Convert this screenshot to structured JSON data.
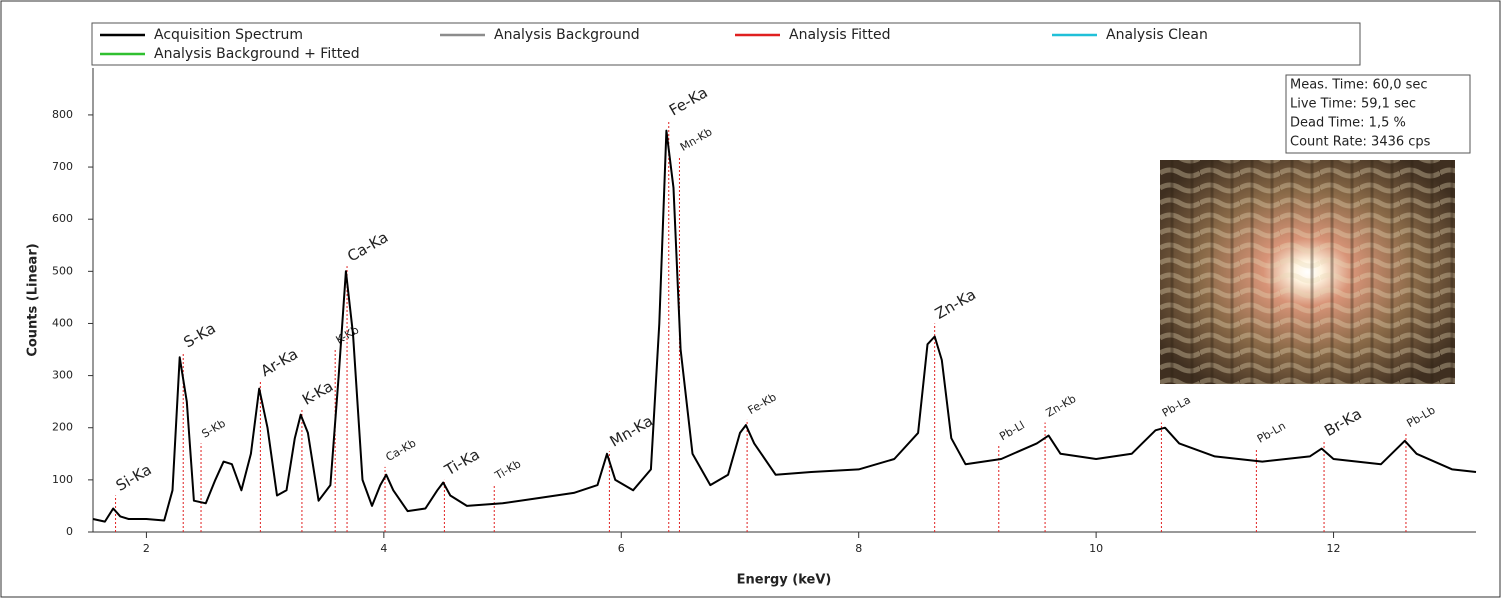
{
  "chart_data": {
    "type": "line",
    "xlabel": "Energy (keV)",
    "ylabel": "Counts (Linear)",
    "xlim": [
      1.55,
      13.2
    ],
    "ylim": [
      0,
      890
    ],
    "xticks": [
      2,
      4,
      6,
      8,
      10,
      12
    ],
    "yticks": [
      0,
      100,
      200,
      300,
      400,
      500,
      600,
      700,
      800
    ],
    "legend": [
      {
        "name": "Acquisition Spectrum",
        "color": "#000000"
      },
      {
        "name": "Analysis Background",
        "color": "#8c8c8c"
      },
      {
        "name": "Analysis Fitted",
        "color": "#e02020"
      },
      {
        "name": "Analysis Clean",
        "color": "#20c0d8"
      },
      {
        "name": "Analysis Background + Fitted",
        "color": "#30c030"
      }
    ],
    "color": "#000000",
    "marker_color": "#e02020",
    "x": [
      1.55,
      1.65,
      1.72,
      1.78,
      1.85,
      2.0,
      2.15,
      2.22,
      2.28,
      2.34,
      2.4,
      2.5,
      2.58,
      2.65,
      2.72,
      2.8,
      2.88,
      2.95,
      3.02,
      3.1,
      3.18,
      3.25,
      3.3,
      3.36,
      3.45,
      3.55,
      3.62,
      3.68,
      3.74,
      3.82,
      3.9,
      3.97,
      4.02,
      4.08,
      4.2,
      4.35,
      4.45,
      4.5,
      4.56,
      4.7,
      5.0,
      5.3,
      5.6,
      5.8,
      5.88,
      5.95,
      6.1,
      6.25,
      6.32,
      6.38,
      6.44,
      6.5,
      6.6,
      6.75,
      6.9,
      7.0,
      7.05,
      7.12,
      7.3,
      7.6,
      8.0,
      8.3,
      8.5,
      8.58,
      8.64,
      8.7,
      8.78,
      8.9,
      9.2,
      9.5,
      9.6,
      9.7,
      10.0,
      10.3,
      10.5,
      10.58,
      10.7,
      11.0,
      11.4,
      11.8,
      11.9,
      12.0,
      12.4,
      12.6,
      12.7,
      13.0,
      13.2
    ],
    "values": [
      25,
      20,
      45,
      30,
      25,
      25,
      22,
      80,
      335,
      250,
      60,
      55,
      100,
      135,
      130,
      80,
      150,
      275,
      200,
      70,
      80,
      180,
      225,
      190,
      60,
      90,
      300,
      500,
      380,
      100,
      50,
      90,
      110,
      80,
      40,
      45,
      80,
      95,
      70,
      50,
      55,
      65,
      75,
      90,
      150,
      100,
      80,
      120,
      400,
      770,
      660,
      350,
      150,
      90,
      110,
      190,
      205,
      170,
      110,
      115,
      120,
      140,
      190,
      360,
      375,
      330,
      180,
      130,
      140,
      170,
      185,
      150,
      140,
      150,
      195,
      200,
      170,
      145,
      135,
      145,
      160,
      140,
      130,
      175,
      150,
      120,
      115
    ],
    "markers": [
      {
        "label": "Si-Ka",
        "x": 1.74,
        "height": 70
      },
      {
        "label": "S-Ka",
        "x": 2.31,
        "height": 345
      },
      {
        "label": "S-Kb",
        "x": 2.46,
        "height": 170
      },
      {
        "label": "Ar-Ka",
        "x": 2.96,
        "height": 290
      },
      {
        "label": "K-Ka",
        "x": 3.31,
        "height": 235
      },
      {
        "label": "K-Kb",
        "x": 3.59,
        "height": 350
      },
      {
        "label": "Ca-Ka",
        "x": 3.69,
        "height": 510
      },
      {
        "label": "Ca-Kb",
        "x": 4.01,
        "height": 125
      },
      {
        "label": "Ti-Ka",
        "x": 4.51,
        "height": 100
      },
      {
        "label": "Ti-Kb",
        "x": 4.93,
        "height": 90
      },
      {
        "label": "Mn-Ka",
        "x": 5.9,
        "height": 155
      },
      {
        "label": "Fe-Ka",
        "x": 6.4,
        "height": 790
      },
      {
        "label": "Mn-Kb",
        "x": 6.49,
        "height": 720
      },
      {
        "label": "Fe-Kb",
        "x": 7.06,
        "height": 215
      },
      {
        "label": "Zn-Ka",
        "x": 8.64,
        "height": 400
      },
      {
        "label": "Pb-Ll",
        "x": 9.18,
        "height": 165
      },
      {
        "label": "Zn-Kb",
        "x": 9.57,
        "height": 210
      },
      {
        "label": "Pb-La",
        "x": 10.55,
        "height": 210
      },
      {
        "label": "Pb-Ln",
        "x": 11.35,
        "height": 160
      },
      {
        "label": "Br-Ka",
        "x": 11.92,
        "height": 175
      },
      {
        "label": "Pb-Lb",
        "x": 12.61,
        "height": 190
      }
    ],
    "info": [
      "Meas. Time: 60,0 sec",
      "Live Time: 59,1 sec",
      "Dead Time: 1,5 %",
      "Count Rate: 3436 cps"
    ]
  }
}
